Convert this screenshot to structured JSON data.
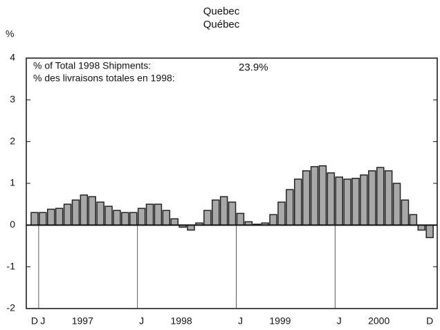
{
  "chart_data": {
    "type": "bar",
    "title": "Quebec",
    "subtitle": "Québec",
    "y_label": "%",
    "annotations": [
      "% of Total 1998 Shipments:",
      "% des livraisons totales en 1998:"
    ],
    "share_label": "23.9%",
    "categories": [
      "D",
      "J",
      null,
      null,
      null,
      null,
      null,
      null,
      null,
      null,
      null,
      null,
      null,
      "J",
      null,
      null,
      null,
      null,
      null,
      null,
      null,
      null,
      null,
      null,
      null,
      "J",
      null,
      null,
      null,
      null,
      null,
      null,
      null,
      null,
      null,
      null,
      null,
      "J",
      null,
      null,
      null,
      null,
      null,
      null,
      null,
      null,
      null,
      null,
      "D"
    ],
    "year_labels": [
      "1997",
      "1998",
      "1999",
      "2000"
    ],
    "values": [
      0.3,
      0.3,
      0.38,
      0.4,
      0.5,
      0.6,
      0.72,
      0.68,
      0.55,
      0.45,
      0.35,
      0.3,
      0.3,
      0.4,
      0.5,
      0.5,
      0.35,
      0.15,
      -0.05,
      -0.12,
      0.05,
      0.35,
      0.6,
      0.68,
      0.55,
      0.28,
      0.08,
      0.02,
      0.05,
      0.25,
      0.55,
      0.85,
      1.1,
      1.3,
      1.4,
      1.42,
      1.25,
      1.15,
      1.1,
      1.12,
      1.2,
      1.3,
      1.38,
      1.3,
      1.0,
      0.6,
      0.25,
      -0.12,
      -0.3
    ],
    "color": "#a8a8a8",
    "ylim": [
      -2,
      4
    ],
    "yticks": [
      -2,
      -1,
      0,
      1,
      2,
      3,
      4
    ]
  }
}
